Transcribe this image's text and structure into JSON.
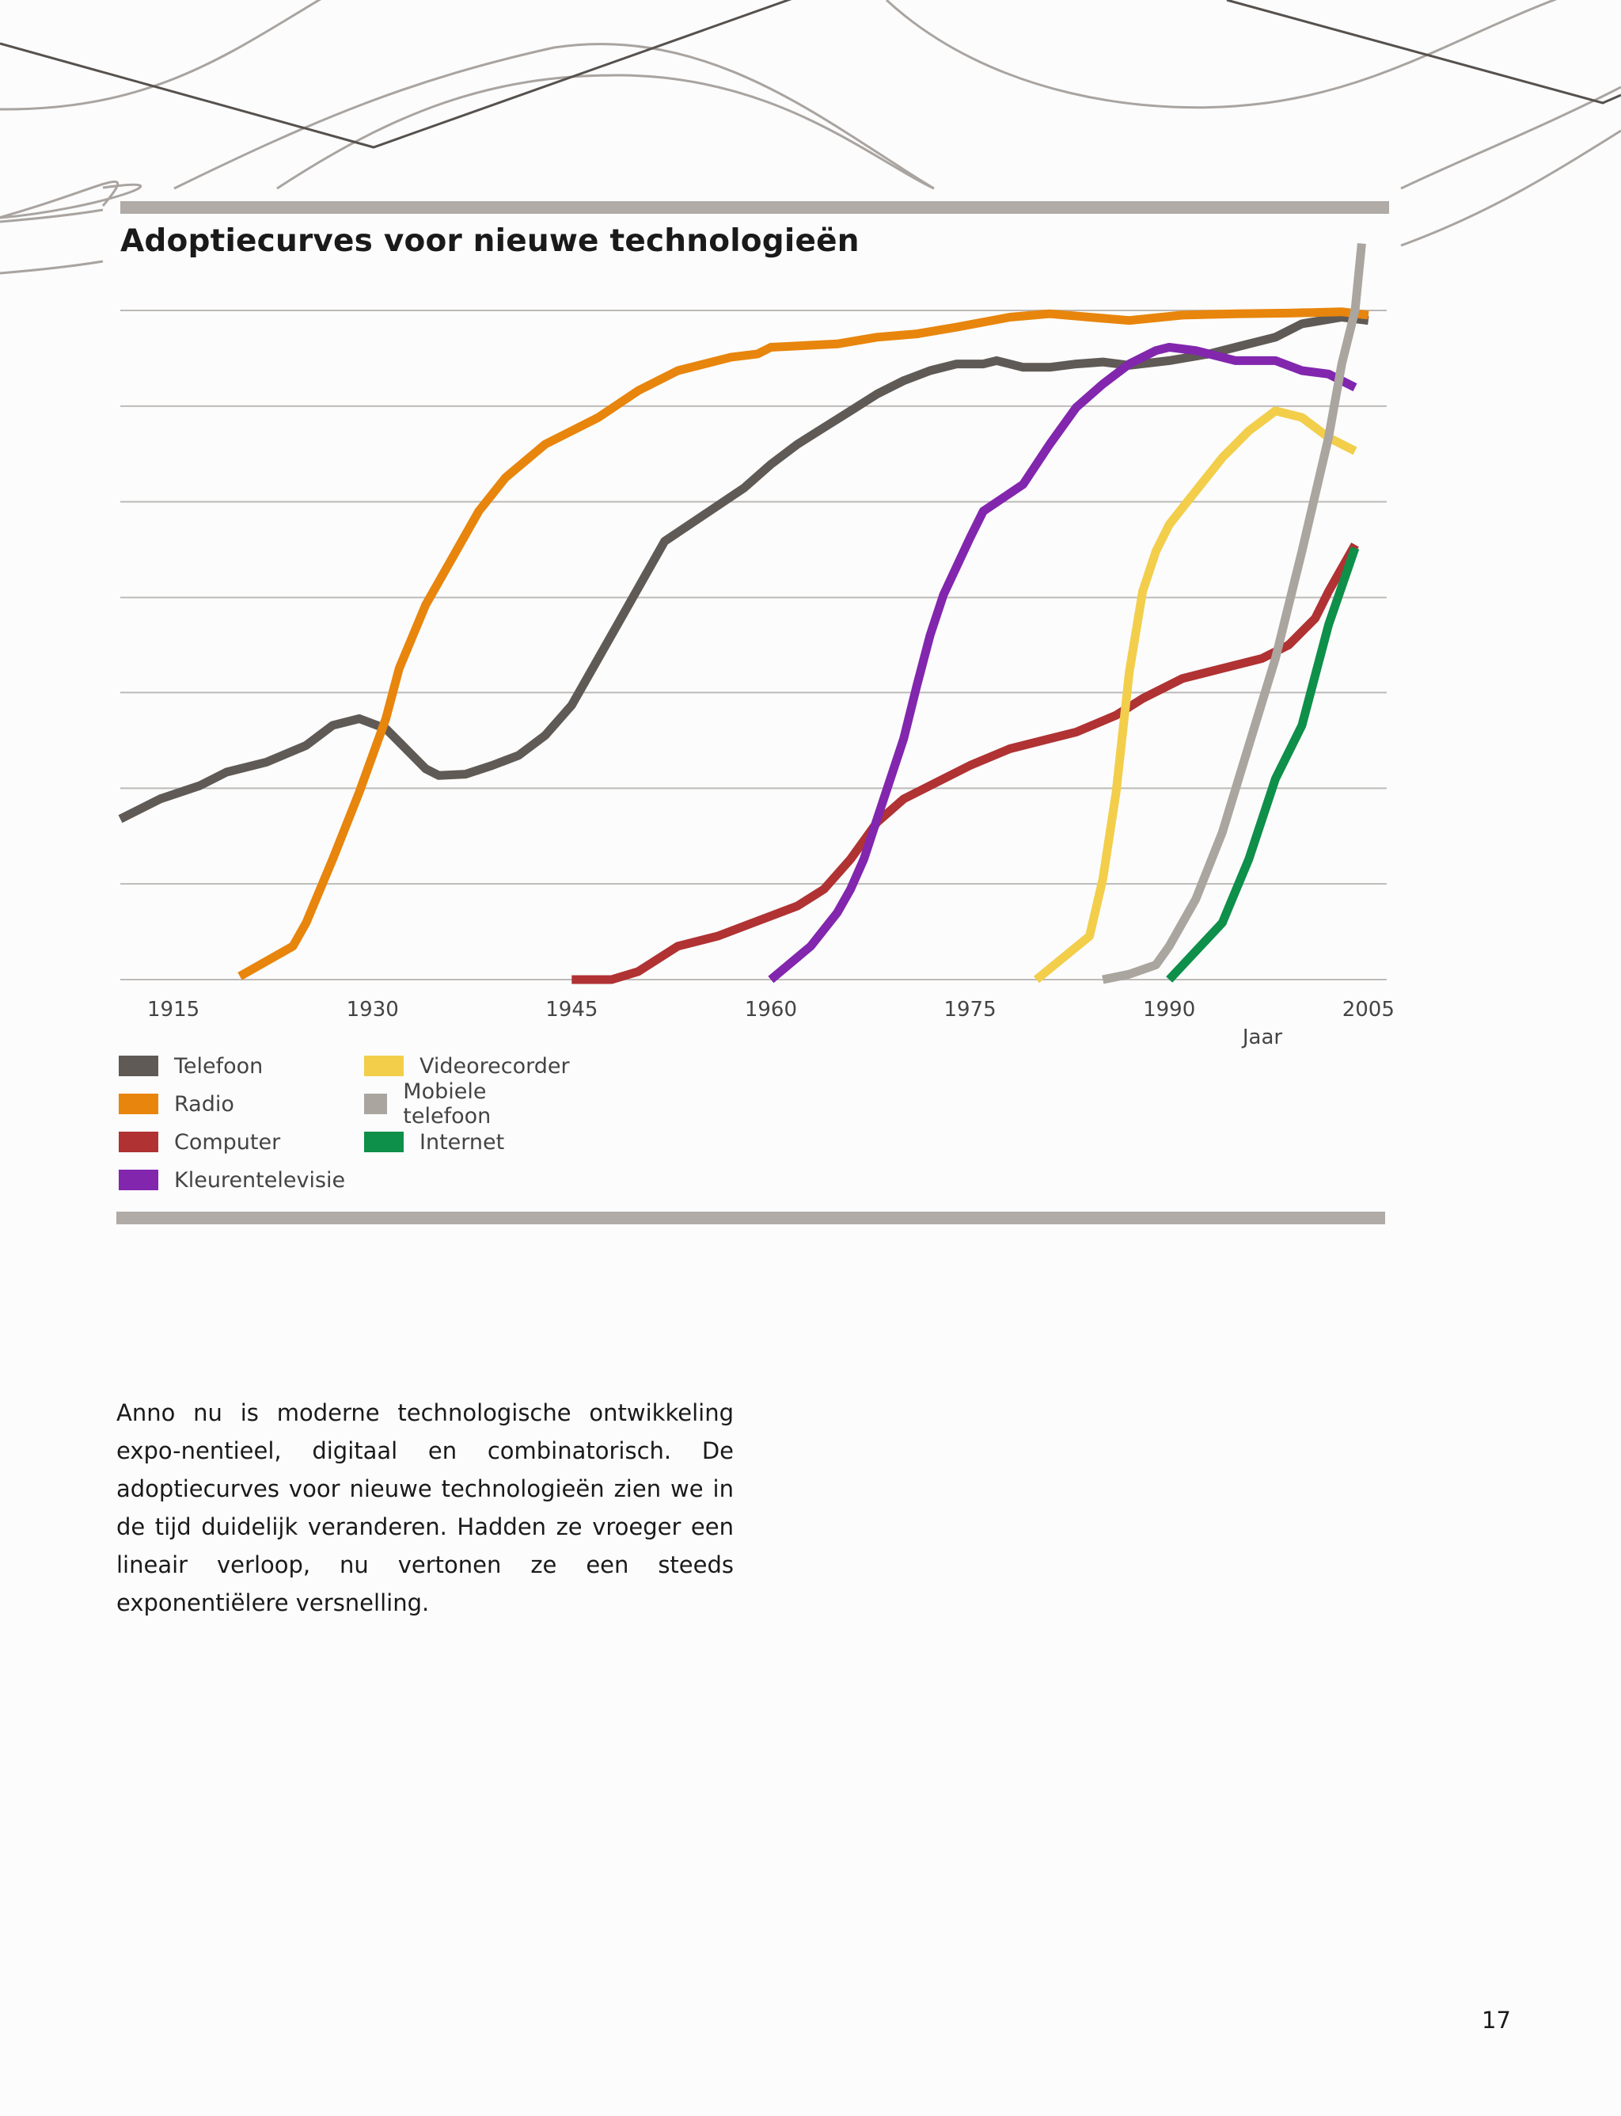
{
  "chart_data": {
    "type": "line",
    "title": "Adoptiecurves voor nieuwe technologieën",
    "xlabel": "Jaar",
    "ylabel": "",
    "xlim": [
      1911,
      2006
    ],
    "ylim": [
      0,
      100
    ],
    "x_ticks": [
      "1915",
      "1930",
      "1945",
      "1960",
      "1975",
      "1990",
      "2005"
    ],
    "x_tick_values": [
      1915,
      1930,
      1945,
      1960,
      1975,
      1990,
      2005
    ],
    "y_gridlines": [
      14.3,
      28.6,
      42.9,
      57.1,
      71.4,
      85.7,
      100
    ],
    "series": [
      {
        "name": "Telefoon",
        "color": "#5f5a55",
        "x": [
          1911,
          1914,
          1917,
          1919,
          1922,
          1925,
          1927,
          1929,
          1931,
          1932,
          1934,
          1935,
          1937,
          1939,
          1941,
          1943,
          1945,
          1947,
          1950,
          1952,
          1955,
          1958,
          1960,
          1962,
          1964,
          1966,
          1968,
          1970,
          1972,
          1974,
          1976,
          1977,
          1979,
          1981,
          1983,
          1985,
          1987,
          1990,
          1993,
          1995,
          1998,
          2000,
          2003,
          2005
        ],
        "y": [
          24,
          27,
          29,
          31,
          32.5,
          35,
          38,
          39,
          37.5,
          35.5,
          31.5,
          30.5,
          30.7,
          32,
          33.5,
          36.5,
          41,
          48,
          58.5,
          65.5,
          69.5,
          73.5,
          77,
          80,
          82.5,
          85,
          87.5,
          89.5,
          91,
          92,
          92,
          92.5,
          91.5,
          91.5,
          92,
          92.3,
          91.8,
          92.5,
          93.5,
          94.5,
          96,
          98,
          99,
          98.5
        ]
      },
      {
        "name": "Radio",
        "color": "#e8850c",
        "x": [
          1920,
          1924,
          1925,
          1927,
          1929,
          1931,
          1932,
          1934,
          1936,
          1938,
          1940,
          1943,
          1945,
          1947,
          1950,
          1953,
          1957,
          1959,
          1960,
          1965,
          1968,
          1971,
          1974,
          1978,
          1981,
          1984,
          1987,
          1991,
          1995,
          1999,
          2003,
          2005
        ],
        "y": [
          0.5,
          5,
          8.5,
          18,
          28,
          39,
          46.5,
          56,
          63,
          70,
          75,
          80,
          82,
          84,
          88,
          91,
          93,
          93.5,
          94.5,
          95,
          96,
          96.5,
          97.5,
          99,
          99.5,
          99,
          98.5,
          99.3,
          99.5,
          99.6,
          99.8,
          99.3
        ]
      },
      {
        "name": "Computer",
        "color": "#b03233",
        "x": [
          1945,
          1948,
          1950,
          1953,
          1956,
          1958,
          1962,
          1964,
          1966,
          1968,
          1970,
          1973,
          1975,
          1978,
          1981,
          1983,
          1986,
          1988,
          1991,
          1994,
          1997,
          1999,
          2001,
          2002,
          2004
        ],
        "y": [
          0,
          0,
          1.2,
          5,
          6.5,
          8,
          11,
          13.5,
          18,
          23.5,
          27,
          30,
          32,
          34.5,
          36,
          37,
          39.5,
          42,
          45,
          46.5,
          48,
          50,
          54,
          58,
          65
        ]
      },
      {
        "name": "Kleurentelevisie",
        "color": "#8226ae",
        "x": [
          1960,
          1963,
          1965,
          1966,
          1967,
          1968,
          1970,
          1971,
          1972,
          1973,
          1975,
          1976,
          1979,
          1981,
          1983,
          1985,
          1987,
          1989,
          1990,
          1992,
          1995,
          1998,
          2000,
          2002,
          2004
        ],
        "y": [
          0,
          5,
          10,
          13.5,
          18,
          24,
          36,
          44,
          51.5,
          57.5,
          66,
          70,
          74,
          80,
          85.5,
          89,
          92,
          94,
          94.5,
          94,
          92.5,
          92.5,
          91,
          90.5,
          88.5
        ]
      },
      {
        "name": "Videorecorder",
        "color": "#f2ce4b",
        "x": [
          1980,
          1984,
          1985,
          1986,
          1987,
          1988,
          1989,
          1990,
          1992,
          1994,
          1996,
          1998,
          2000,
          2002,
          2004
        ],
        "y": [
          0,
          6.5,
          15,
          28,
          46,
          58,
          64,
          68,
          73,
          78,
          82,
          85,
          84,
          81,
          79
        ]
      },
      {
        "name": "Mobiele telefoon",
        "color": "#aaa59f",
        "x": [
          1985,
          1987,
          1989,
          1990,
          1992,
          1994,
          1996,
          1998,
          2000,
          2002,
          2003,
          2004,
          2004.5
        ],
        "y": [
          0,
          0.8,
          2.2,
          5,
          12,
          22,
          35,
          48,
          64,
          81,
          92,
          100,
          110
        ]
      },
      {
        "name": "Internet",
        "color": "#0e8f4a",
        "x": [
          1990,
          1994,
          1996,
          1998,
          2000,
          2002,
          2004
        ],
        "y": [
          0,
          8.5,
          18,
          30,
          38,
          53,
          64.5
        ]
      }
    ]
  },
  "legend": [
    {
      "label": "Telefoon",
      "color": "#5f5a55"
    },
    {
      "label": "Radio",
      "color": "#e8850c"
    },
    {
      "label": "Computer",
      "color": "#b03233"
    },
    {
      "label": "Kleurentelevisie",
      "color": "#8226ae"
    },
    {
      "label": "Videorecorder",
      "color": "#f2ce4b"
    },
    {
      "label": "Mobiele telefoon",
      "color": "#aaa59f"
    },
    {
      "label": "Internet",
      "color": "#0e8f4a"
    }
  ],
  "body_text": "Anno nu is moderne technologische ontwikkeling expo-nentieel, digitaal en combinatorisch. De adoptiecurves voor nieuwe technologieën zien we in de tijd duidelijk veranderen. Hadden ze vroeger een lineair verloop, nu vertonen ze een steeds exponentiëlere versnelling.",
  "page_number": "17"
}
